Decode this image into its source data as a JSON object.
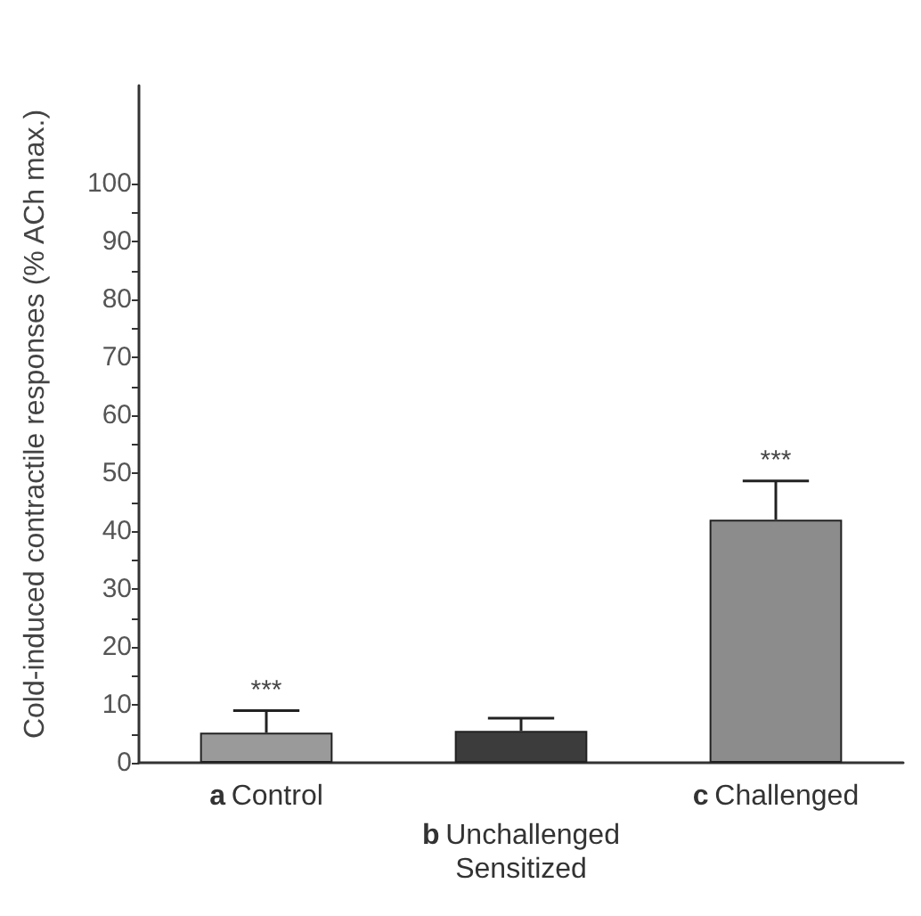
{
  "chart_data": {
    "type": "bar",
    "ylabel": "Cold-induced contractile responses (% ACh max.)",
    "categories": [
      "a Control",
      "b Unchallenged",
      "c Challenged"
    ],
    "values": [
      5.2,
      5.5,
      42
    ],
    "colors": [
      "#9a9a9a",
      "#3c3c3c",
      "#8c8c8c"
    ],
    "errors": [
      [
        5.2,
        9
      ],
      [
        5.5,
        7.7
      ],
      [
        42,
        48.7
      ]
    ],
    "ylim": [
      0,
      117
    ],
    "yticks": [
      0,
      {
        "value": 5,
        "label": null
      },
      10,
      {
        "value": 15,
        "label": null
      },
      20,
      {
        "value": 25,
        "label": null
      },
      30,
      {
        "value": 35,
        "label": null
      },
      40,
      {
        "value": 45,
        "label": null
      },
      50,
      {
        "value": 55,
        "label": null
      },
      60,
      {
        "value": 65,
        "label": null
      },
      70,
      {
        "value": 75,
        "label": null
      },
      80,
      {
        "value": 85,
        "label": null
      },
      90,
      {
        "value": 95,
        "label": null
      },
      100
    ],
    "annotations": [
      {
        "text": "***",
        "x": "a Control",
        "y": 9
      },
      {
        "text": "***",
        "x": "c Challenged",
        "y": 48.7
      },
      "Sensitized"
    ],
    "grid": false
  }
}
